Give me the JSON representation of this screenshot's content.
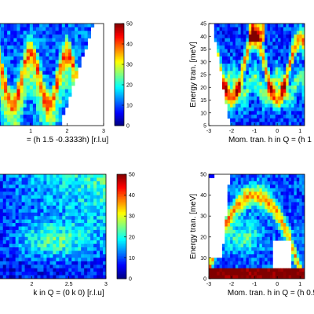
{
  "colors": {
    "colormap": "jet",
    "background": "#ffffff",
    "masked_region": "#ffffff",
    "axis": "#000000"
  },
  "chart_data": [
    {
      "type": "heatmap",
      "panel": "top-left",
      "xlabel": "= (h 1.5 -0.3333h) [r.l.u]",
      "ylabel": "",
      "x_ticks": [
        "0",
        "1",
        "2",
        "3"
      ],
      "xlim": [
        -0.7,
        3.0
      ],
      "ylim": [
        10,
        45
      ],
      "y_ticks": [],
      "mask": "upper-right wedge empty (kinematic limit)",
      "features": "sinusoidal magnon bands, maxima near h=0,1,2; high intensity at top-left",
      "colorbar": {
        "range": [
          0,
          50
        ],
        "ticks": [
          "50",
          "40",
          "30",
          "20",
          "10",
          "0"
        ]
      }
    },
    {
      "type": "heatmap",
      "panel": "top-right",
      "xlabel": "Mom. tran. h in Q = (h 1 -",
      "ylabel": "Energy tran. [meV]",
      "x_ticks": [
        "-3",
        "-2",
        "-1",
        "0",
        "1"
      ],
      "xlim": [
        -3,
        1.2
      ],
      "ylim": [
        5,
        45
      ],
      "y_ticks": [
        "5",
        "10",
        "15",
        "20",
        "25",
        "30",
        "35",
        "40",
        "45"
      ],
      "mask": "left region empty below ~40 meV; data inside trapezoid",
      "features": "dispersive arcs with maxima near h=-2, -1, 0, 1; intense near 40 meV at h=-1",
      "colorbar": null
    },
    {
      "type": "heatmap",
      "panel": "bottom-left",
      "xlabel": "k in Q = (0 k 0) [r.l.u]",
      "ylabel": "",
      "x_ticks": [
        "1.5",
        "2",
        "2.5",
        "3"
      ],
      "xlim": [
        1.15,
        3.0
      ],
      "ylim": [
        0,
        50
      ],
      "y_ticks": [],
      "mask": "none",
      "features": "strong feature near k~1.2, E~32; diffuse intensity rising to upper right",
      "colorbar": {
        "range": [
          0,
          50
        ],
        "ticks": [
          "50",
          "40",
          "30",
          "20",
          "10",
          "0"
        ]
      }
    },
    {
      "type": "heatmap",
      "panel": "bottom-right",
      "xlabel": "Mom. tran. h in Q = (h 0.5",
      "ylabel": "Energy tran. [meV]",
      "x_ticks": [
        "-3",
        "-2",
        "-1",
        "0",
        "1"
      ],
      "xlim": [
        -3,
        1.2
      ],
      "ylim": [
        0,
        50
      ],
      "y_ticks": [
        "0",
        "10",
        "20",
        "30",
        "40",
        "50"
      ],
      "mask": "left wedge empty; white rectangle near h=0, 0-18 meV",
      "features": "dark red elastic line below ~5 meV; arch of intensity peaking near h=-1, E~40",
      "colorbar": null
    }
  ]
}
